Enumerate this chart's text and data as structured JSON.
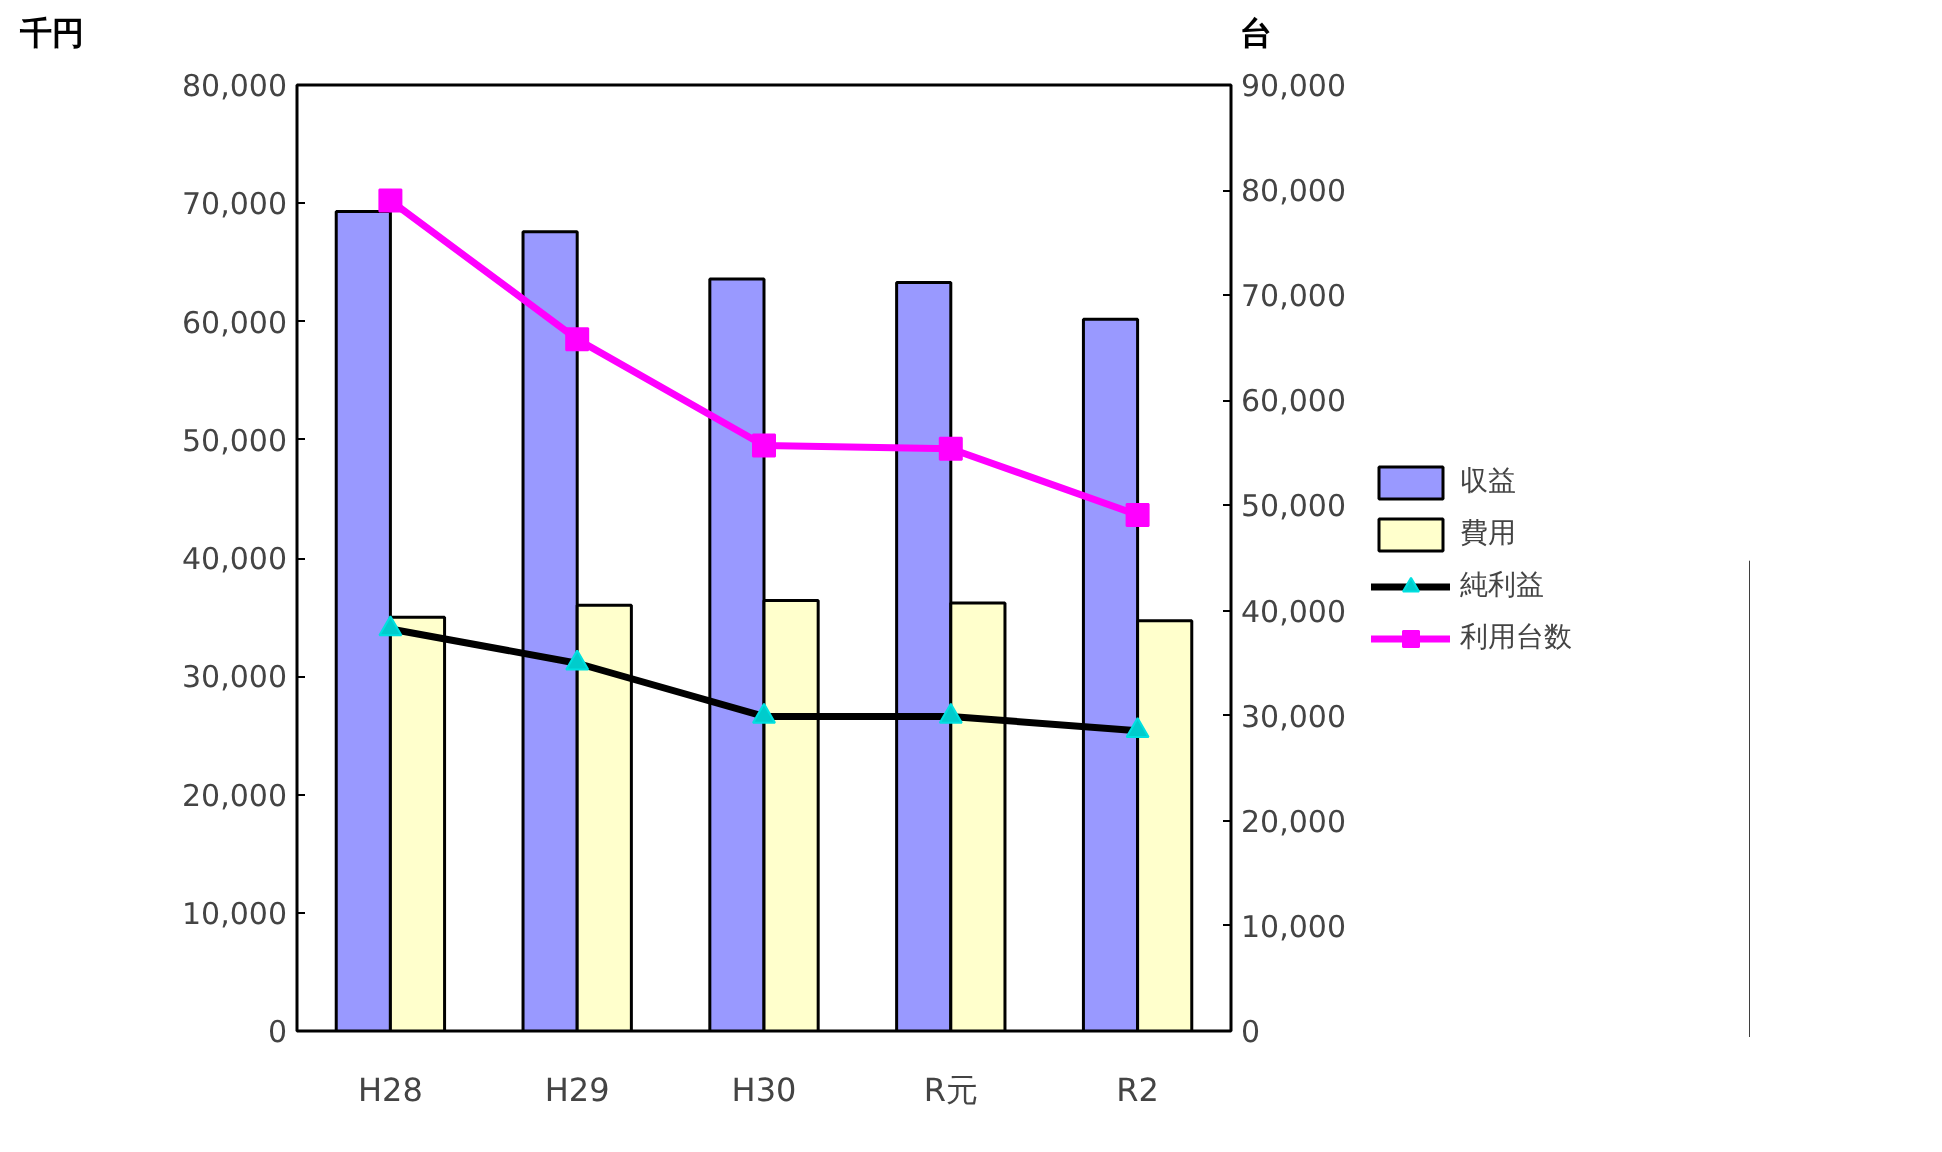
{
  "chart_data": {
    "type": "bar",
    "ylabel": "千円",
    "y2label": "台",
    "categories": [
      "H28",
      "H29",
      "H30",
      "R元",
      "R2"
    ],
    "series": [
      {
        "name": "収益",
        "color": "#9999ff",
        "values": [
          69300,
          67600,
          63600,
          63300,
          60200
        ]
      },
      {
        "name": "費用",
        "color": "#ffffcc",
        "values": [
          35000,
          36000,
          36400,
          36200,
          34700
        ]
      },
      {
        "name": "純利益",
        "type": "line",
        "color": "#000000",
        "marker": "triangle",
        "values": [
          34000,
          31100,
          26600,
          26600,
          25400
        ]
      },
      {
        "name": "利用台数",
        "type": "line",
        "axis": "y2",
        "color": "#ff00ff",
        "marker": "square",
        "values": [
          79000,
          65800,
          55700,
          55400,
          49100
        ]
      }
    ],
    "ylim": [
      0,
      80000
    ],
    "yticks": [
      0,
      {
        "value": 10000,
        "label": "10,000"
      },
      {
        "value": 20000,
        "label": "20,000"
      },
      {
        "value": 30000,
        "label": "30,000"
      },
      {
        "value": 40000,
        "label": "40,000"
      },
      {
        "value": 50000,
        "label": "50,000"
      },
      {
        "value": 60000,
        "label": "60,000"
      },
      {
        "value": 70000,
        "label": "70,000"
      },
      {
        "value": 80000,
        "label": "80,000"
      }
    ],
    "y2lim": [
      0,
      90000
    ],
    "y2ticks": [
      0,
      {
        "value": 10000,
        "label": "10,000"
      },
      {
        "value": 20000,
        "label": "20,000"
      },
      {
        "value": 30000,
        "label": "30,000"
      },
      {
        "value": 40000,
        "label": "40,000"
      },
      {
        "value": 50000,
        "label": "50,000"
      },
      {
        "value": 60000,
        "label": "60,000"
      },
      {
        "value": 70000,
        "label": "70,000"
      },
      {
        "value": 80000,
        "label": "80,000"
      },
      {
        "value": 90000,
        "label": "90,000"
      }
    ],
    "grid": false,
    "legend": "right"
  }
}
